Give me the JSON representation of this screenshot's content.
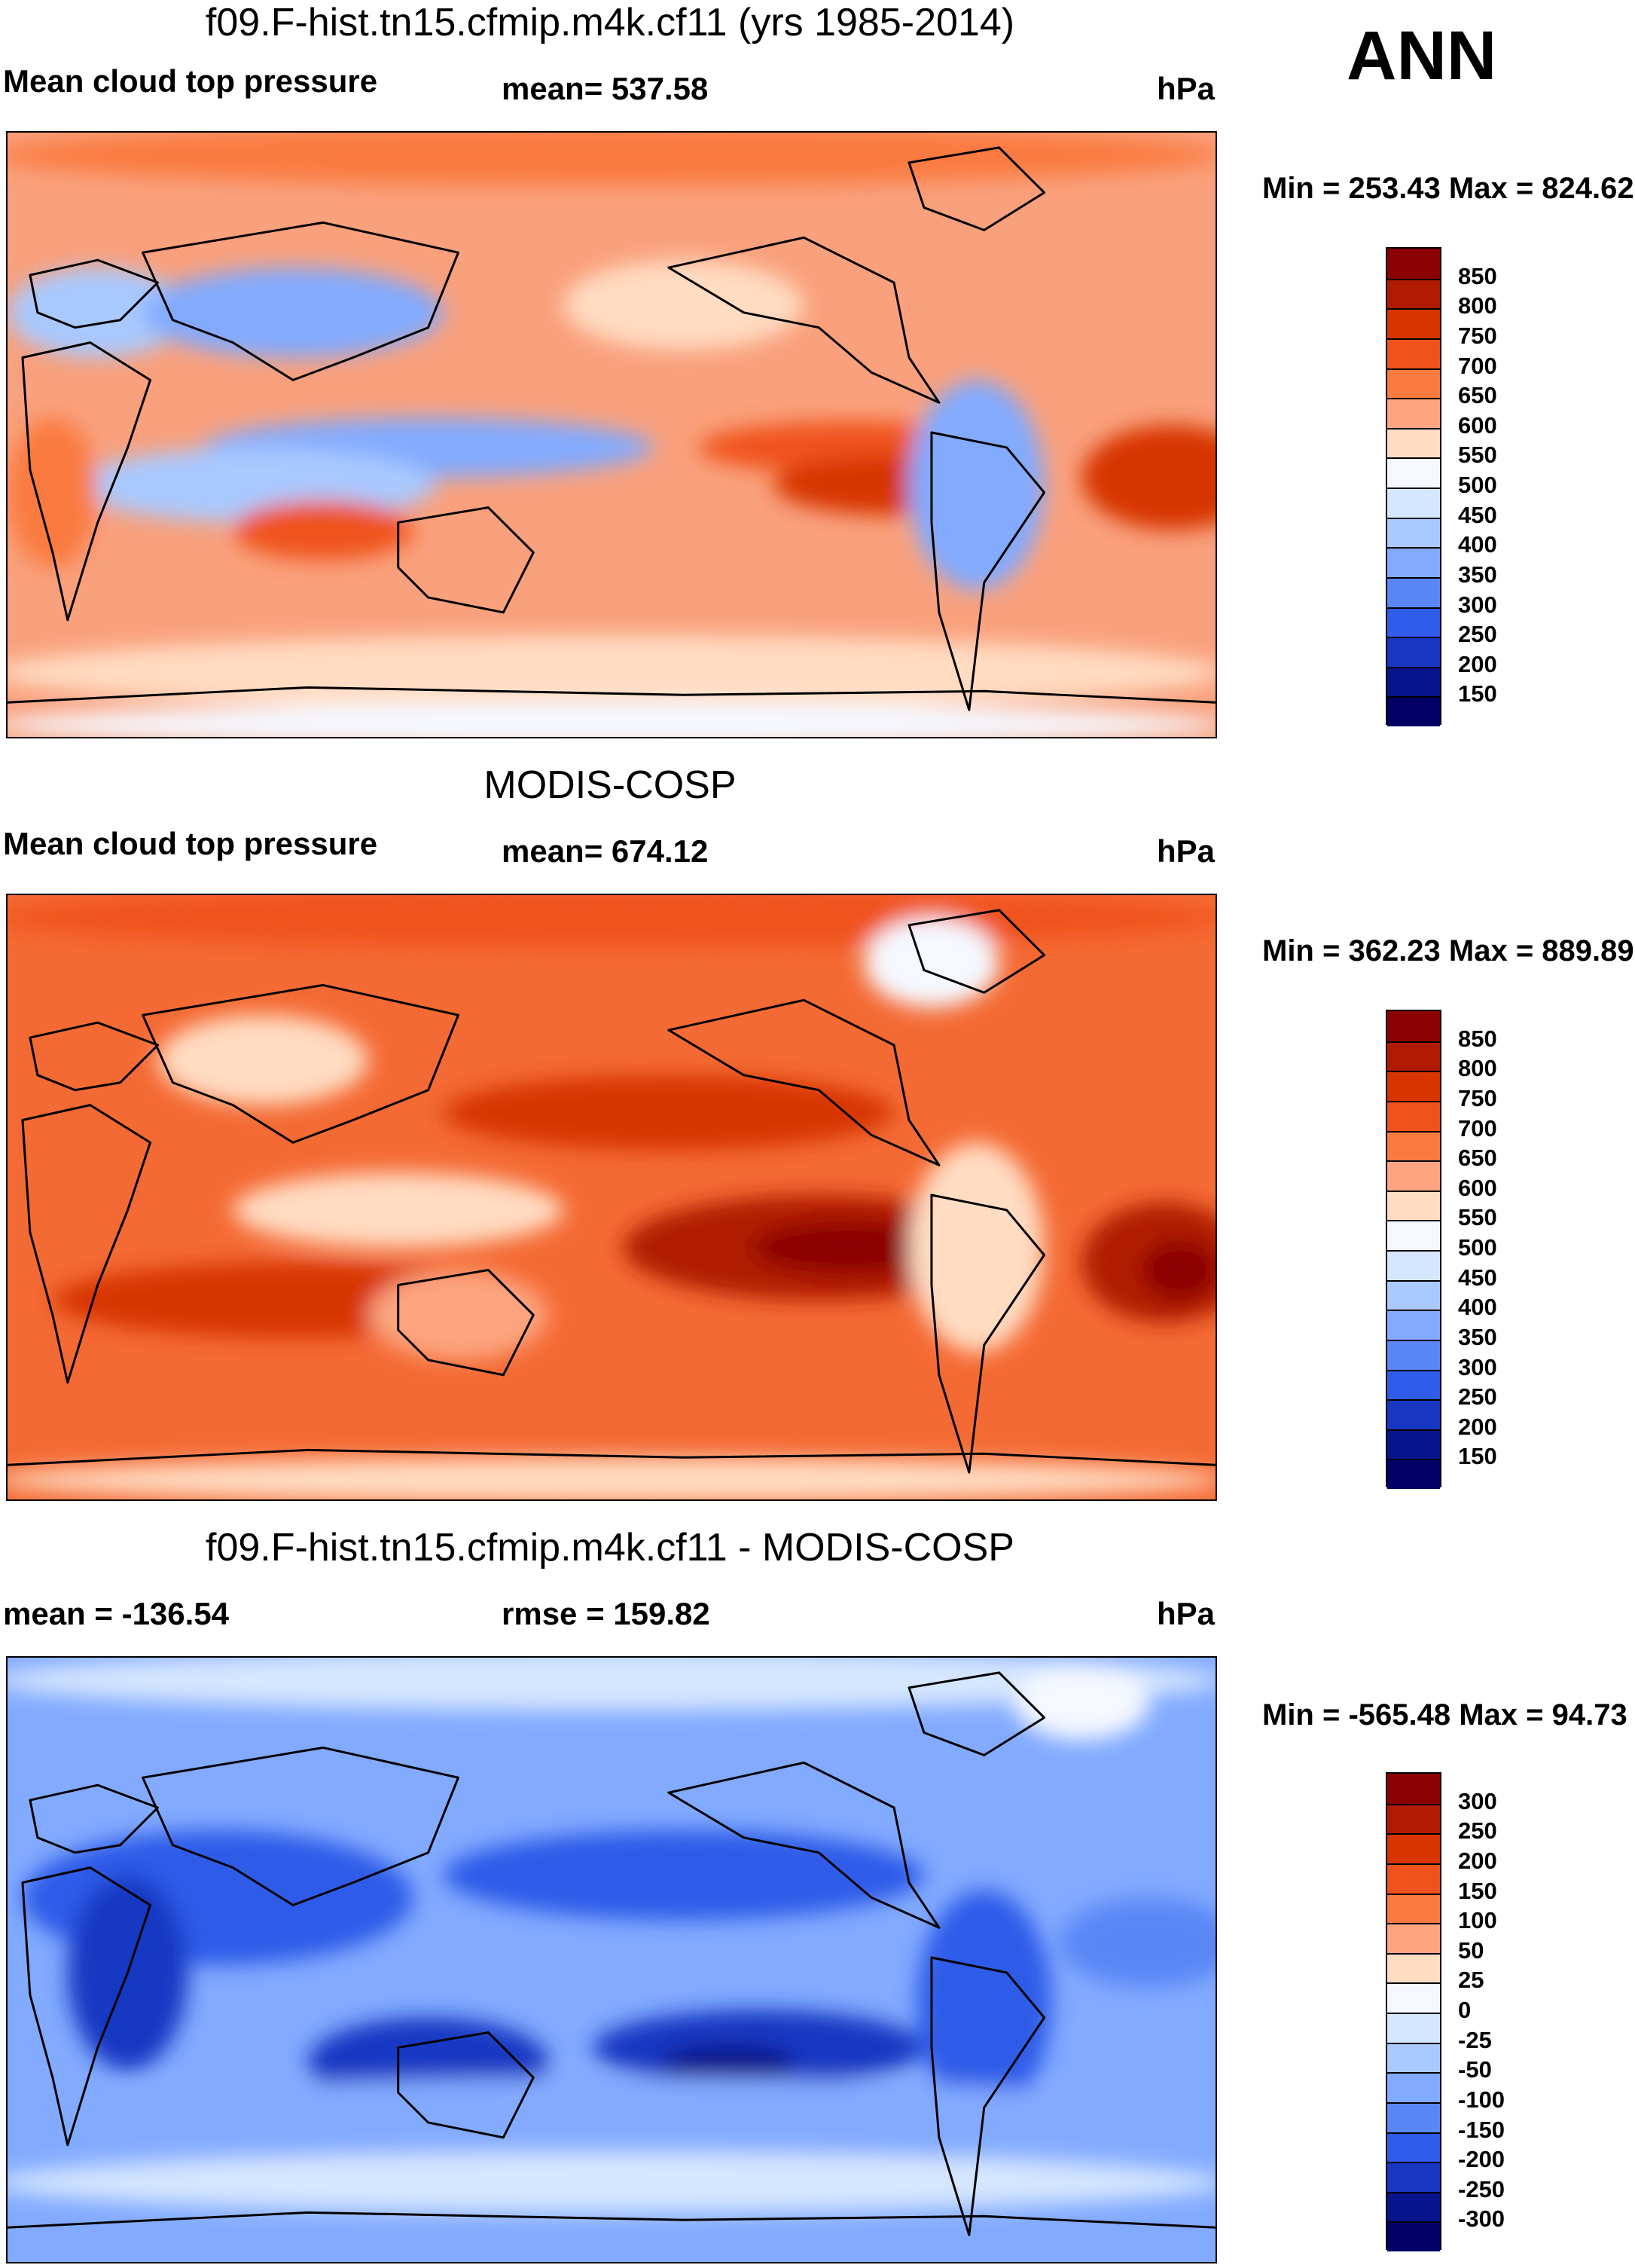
{
  "season": "ANN",
  "units_label": "hPa",
  "chart_data": [
    {
      "type": "heatmap",
      "title": "f09.F-hist.tn15.cfmip.m4k.cf11 (yrs 1985-2014)",
      "left_label": "Mean cloud top pressure",
      "center_label": "mean= 537.58",
      "units": "hPa",
      "minmax": "Min = 253.43 Max = 824.62",
      "colorbar": {
        "levels": [
          "850",
          "800",
          "750",
          "700",
          "650",
          "600",
          "550",
          "500",
          "450",
          "400",
          "350",
          "300",
          "250",
          "200",
          "150"
        ],
        "colors": [
          "#8b0000",
          "#b01a00",
          "#d73400",
          "#f0521c",
          "#fa7a40",
          "#fca480",
          "#ffdcc2",
          "#f5f8ff",
          "#d5e7ff",
          "#a9c9ff",
          "#82aaff",
          "#5a87f5",
          "#2f5ce8",
          "#1737c2",
          "#07148c",
          "#000066"
        ]
      },
      "background_color": "#f9a07c"
    },
    {
      "type": "heatmap",
      "title": "MODIS-COSP",
      "left_label": "Mean cloud top pressure",
      "center_label": "mean= 674.12",
      "units": "hPa",
      "minmax": "Min = 362.23 Max = 889.89",
      "colorbar": {
        "levels": [
          "850",
          "800",
          "750",
          "700",
          "650",
          "600",
          "550",
          "500",
          "450",
          "400",
          "350",
          "300",
          "250",
          "200",
          "150"
        ],
        "colors": [
          "#8b0000",
          "#b01a00",
          "#d73400",
          "#f0521c",
          "#fa7a40",
          "#fca480",
          "#ffdcc2",
          "#f5f8ff",
          "#d5e7ff",
          "#a9c9ff",
          "#82aaff",
          "#5a87f5",
          "#2f5ce8",
          "#1737c2",
          "#07148c",
          "#000066"
        ]
      },
      "background_color": "#f46a34"
    },
    {
      "type": "heatmap",
      "title": "f09.F-hist.tn15.cfmip.m4k.cf11 - MODIS-COSP",
      "left_label": "mean = -136.54",
      "center_label": "rmse = 159.82",
      "units": "hPa",
      "minmax": "Min = -565.48 Max =  94.73",
      "colorbar": {
        "levels": [
          "300",
          "250",
          "200",
          "150",
          "100",
          "50",
          "25",
          "0",
          "-25",
          "-50",
          "-100",
          "-150",
          "-200",
          "-250",
          "-300"
        ],
        "colors": [
          "#8b0000",
          "#b01a00",
          "#d73400",
          "#f0521c",
          "#fa7a40",
          "#fca480",
          "#ffdcc2",
          "#f5f8ff",
          "#d5e7ff",
          "#a9c9ff",
          "#82aaff",
          "#5a87f5",
          "#2f5ce8",
          "#1737c2",
          "#07148c",
          "#000066"
        ]
      },
      "background_color": "#82aaff"
    }
  ]
}
